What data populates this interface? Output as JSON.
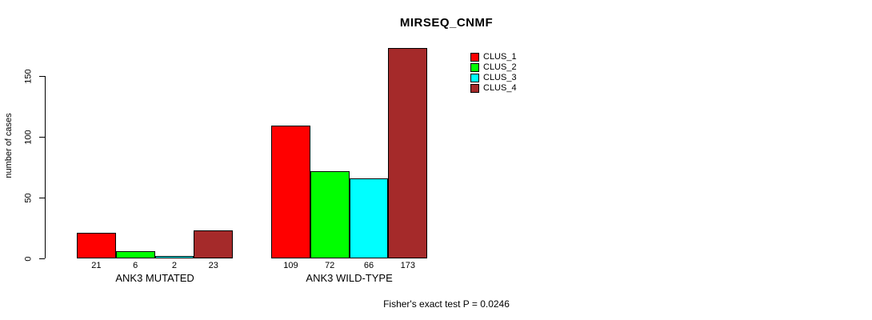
{
  "chart_data": {
    "type": "bar",
    "title": "MIRSEQ_CNMF",
    "ylabel": "number of cases",
    "xlabel": "",
    "yticks": [
      0,
      50,
      100,
      150
    ],
    "ylim": [
      0,
      175
    ],
    "grid": false,
    "legend_position": "top-right-inside",
    "categories": [
      "ANK3 MUTATED",
      "ANK3 WILD-TYPE"
    ],
    "series": [
      {
        "name": "CLUS_1",
        "color": "#ff0000",
        "values": [
          21,
          109
        ]
      },
      {
        "name": "CLUS_2",
        "color": "#00ff00",
        "values": [
          6,
          72
        ]
      },
      {
        "name": "CLUS_3",
        "color": "#00ffff",
        "values": [
          2,
          66
        ]
      },
      {
        "name": "CLUS_4",
        "color": "#a52a2a",
        "values": [
          23,
          173
        ]
      }
    ],
    "bar_value_labels_shown": true,
    "annotation": "Fisher's exact test P = 0.0246"
  },
  "colors": {
    "background": "#ffffff",
    "axis": "#000000",
    "text": "#000000"
  }
}
